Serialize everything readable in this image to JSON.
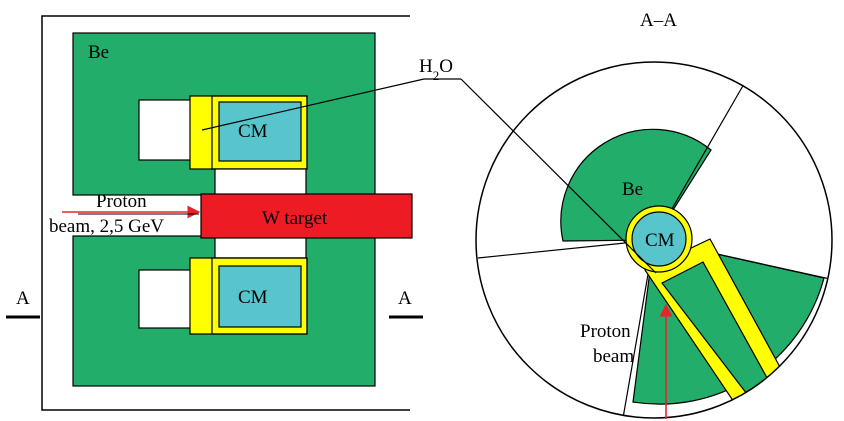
{
  "labels": {
    "section_title": "A–A",
    "be_left": "Be",
    "h2o_main": "H",
    "h2o_sub": "2",
    "h2o_end": "O",
    "cm_top": "CM",
    "cm_bottom": "CM",
    "cm_section": "CM",
    "proton_line1": "Proton",
    "proton_line2": "beam, 2,5 GeV",
    "w_target": "W target",
    "be_section": "Be",
    "section_mark_left": "A",
    "section_mark_right": "A",
    "proton_beam_line1": "Proton",
    "proton_beam_line2": "beam"
  },
  "colors": {
    "beryllium": "#22ad6a",
    "water": "#ffff00",
    "cold_moderator": "#58c4cc",
    "tungsten_target": "#ed1c24",
    "beam_arrow": "#e8232b",
    "outline": "#000000"
  }
}
